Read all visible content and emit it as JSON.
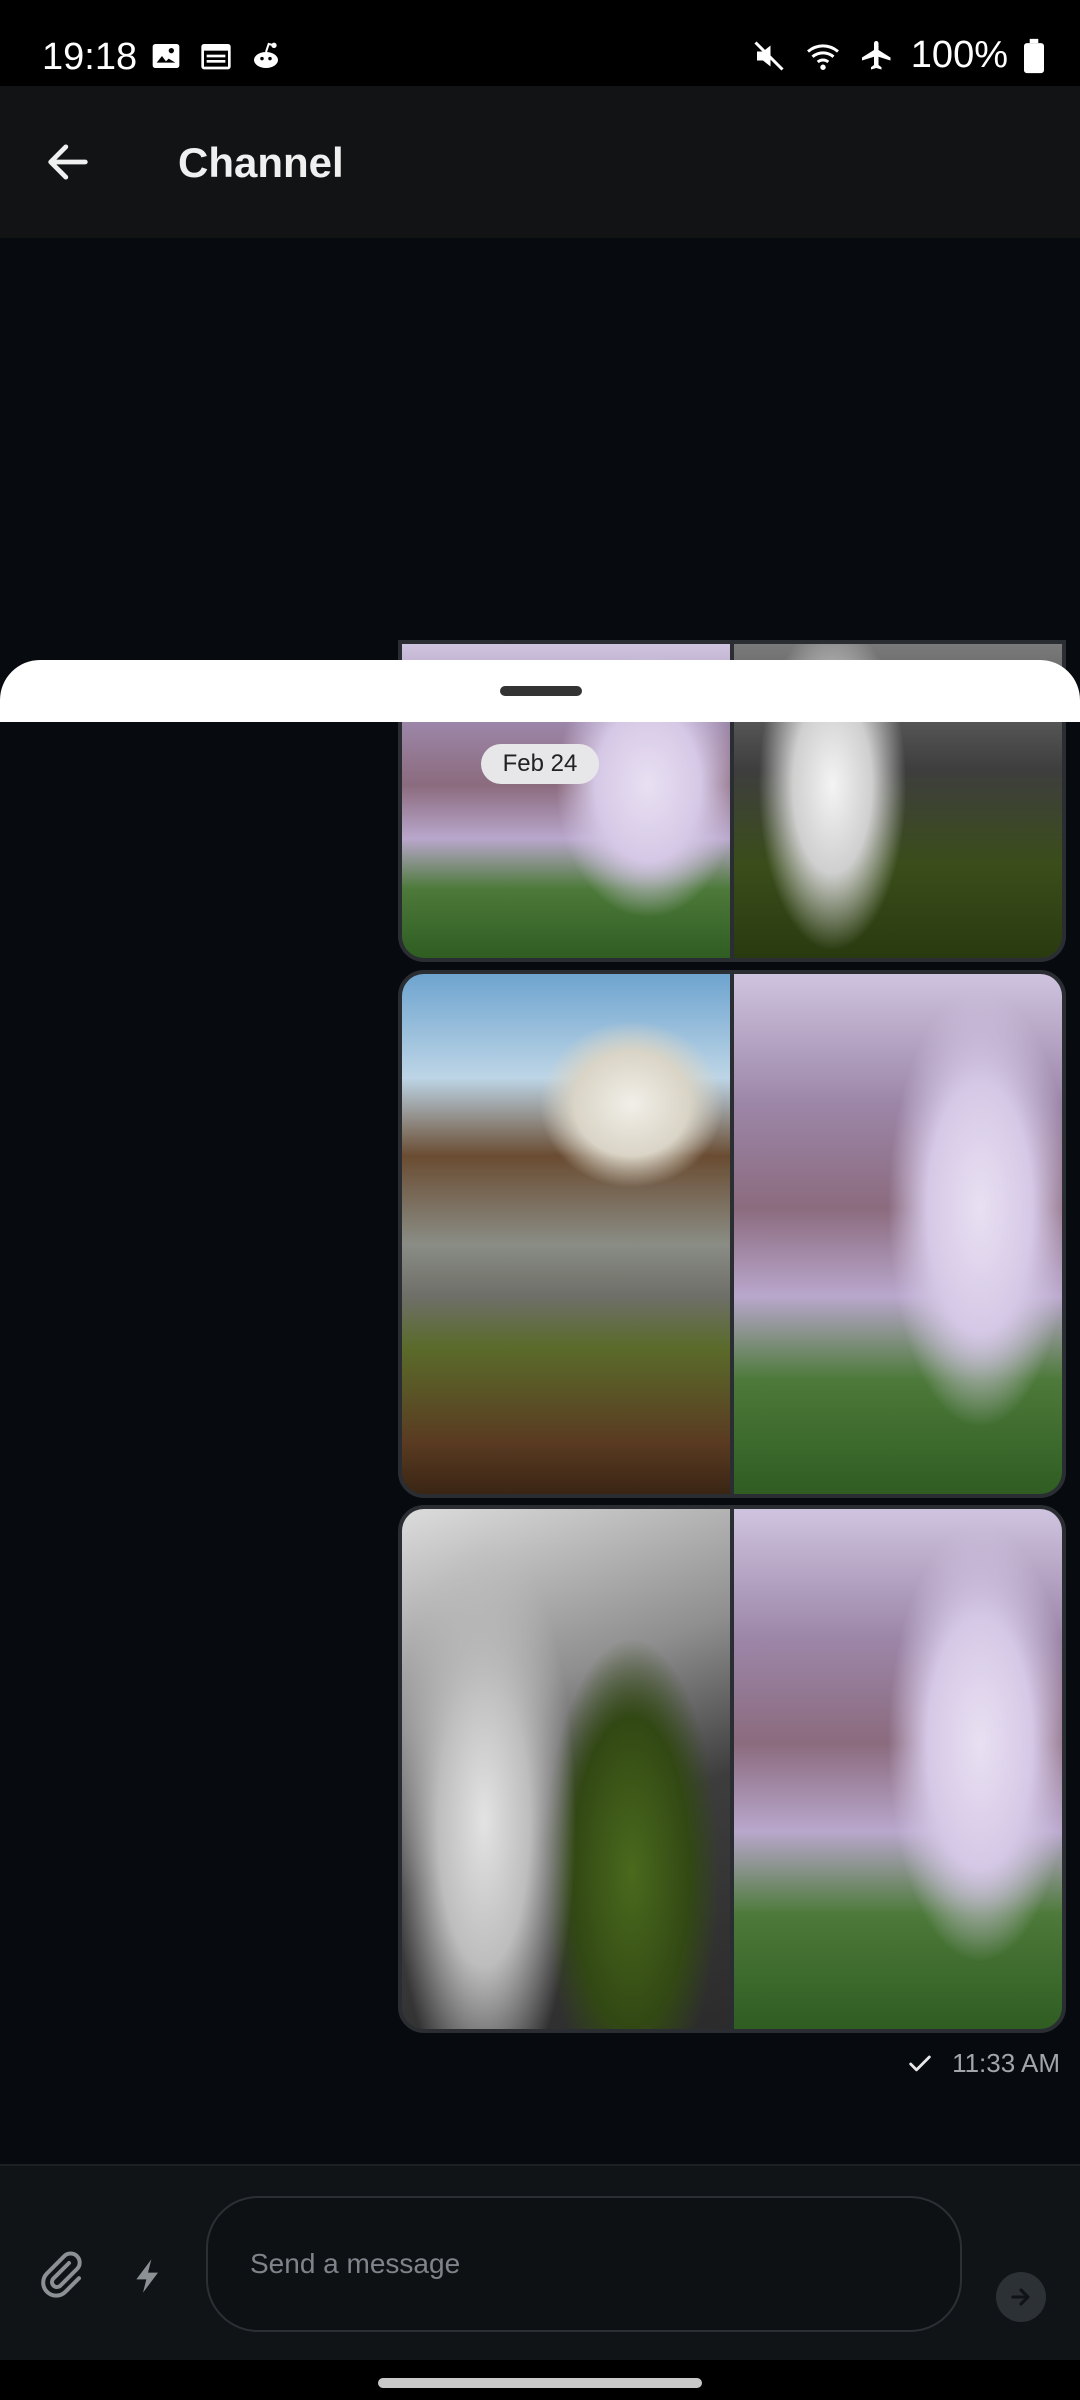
{
  "status_bar": {
    "time": "19:18",
    "battery_text": "100%",
    "left_icons": [
      "photo-icon",
      "calendar-icon",
      "reddit-icon"
    ],
    "right_icons": [
      "mute-icon",
      "wifi-icon",
      "airplane-icon",
      "battery-icon"
    ]
  },
  "app_bar": {
    "title": "Channel"
  },
  "messages": {
    "date_separator": "Feb 24",
    "timestamp": "11:33 AM",
    "status": "sent"
  },
  "composer": {
    "placeholder": "Send a message"
  },
  "colors": {
    "background": "#070b0f",
    "app_bar": "#111315",
    "sheet": "#ffffff"
  }
}
